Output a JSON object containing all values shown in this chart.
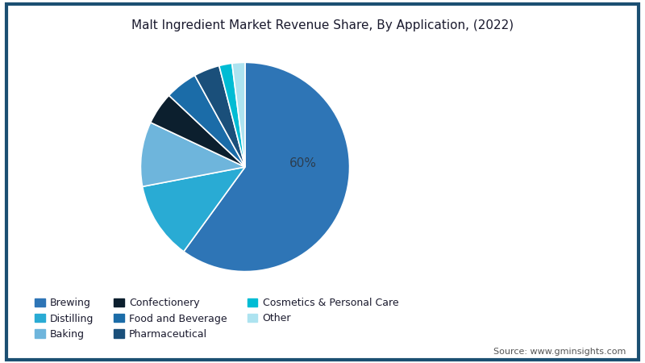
{
  "title": "Malt Ingredient Market Revenue Share, By Application, (2022)",
  "labels": [
    "Brewing",
    "Distilling",
    "Baking",
    "Confectionery",
    "Food and Beverage",
    "Pharmaceutical",
    "Cosmetics & Personal Care",
    "Other"
  ],
  "values": [
    60,
    12,
    10,
    5,
    5,
    4,
    2,
    2
  ],
  "colors": [
    "#2E75B6",
    "#29ABD4",
    "#6EB5DC",
    "#0C1F2E",
    "#1B6CA8",
    "#1A4F7A",
    "#00BCD4",
    "#ADE3F0"
  ],
  "label_60_text": "60%",
  "background_color": "#FFFFFF",
  "border_color": "#1B4F72",
  "source_text": "Source: www.gminsights.com",
  "legend_order": [
    "Brewing",
    "Distilling",
    "Baking",
    "Confectionery",
    "Food and Beverage",
    "Pharmaceutical",
    "Cosmetics & Personal Care",
    "Other"
  ]
}
